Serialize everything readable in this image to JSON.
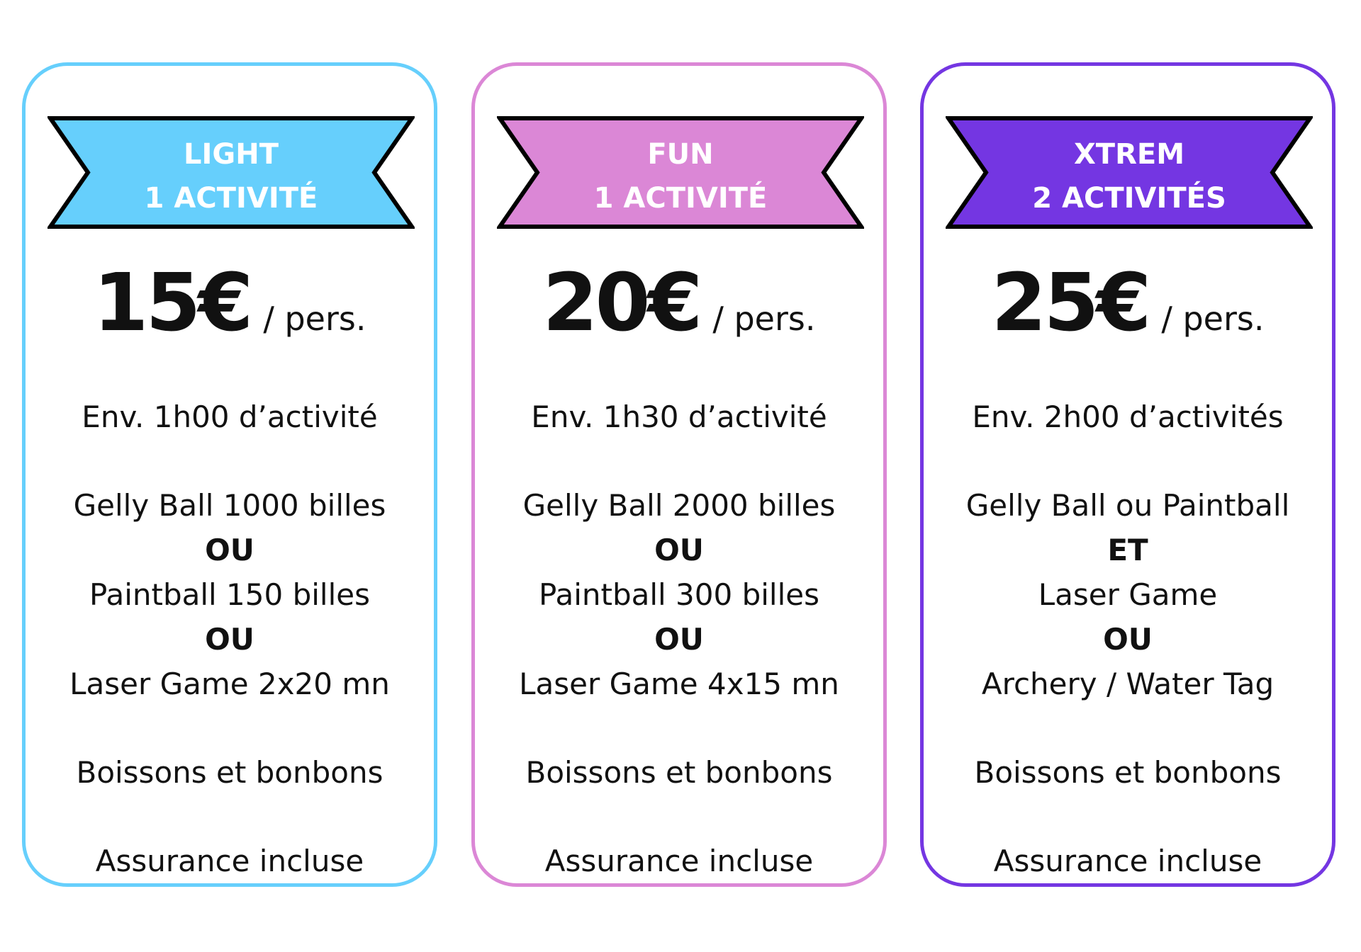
{
  "cards": [
    {
      "color": "#66CFFC",
      "title": "LIGHT",
      "subtitle": "1 ACTIVITÉ",
      "price": "15€",
      "unit": "/ pers.",
      "lines": [
        {
          "text": "Env. 1h00 d’activité",
          "bold": false
        },
        {
          "text": "Gelly Ball 1000 billes",
          "bold": false
        },
        {
          "text": "OU",
          "bold": true
        },
        {
          "text": "Paintball 150 billes",
          "bold": false
        },
        {
          "text": "OU",
          "bold": true
        },
        {
          "text": "Laser Game 2x20 mn",
          "bold": false
        },
        {
          "text": "Boissons et bonbons",
          "bold": false
        },
        {
          "text": "Assurance incluse",
          "bold": false
        }
      ]
    },
    {
      "color": "#DB87D6",
      "title": "FUN",
      "subtitle": "1 ACTIVITÉ",
      "price": "20€",
      "unit": "/ pers.",
      "lines": [
        {
          "text": "Env. 1h30 d’activité",
          "bold": false
        },
        {
          "text": "Gelly Ball 2000 billes",
          "bold": false
        },
        {
          "text": "OU",
          "bold": true
        },
        {
          "text": "Paintball 300 billes",
          "bold": false
        },
        {
          "text": "OU",
          "bold": true
        },
        {
          "text": "Laser Game 4x15 mn",
          "bold": false
        },
        {
          "text": "Boissons et bonbons",
          "bold": false
        },
        {
          "text": "Assurance incluse",
          "bold": false
        }
      ]
    },
    {
      "color": "#7436E2",
      "title": "XTREM",
      "subtitle": "2 ACTIVITÉS",
      "price": "25€",
      "unit": "/ pers.",
      "lines": [
        {
          "text": "Env. 2h00 d’activités",
          "bold": false
        },
        {
          "text": "Gelly Ball ou Paintball",
          "bold": false
        },
        {
          "text": "ET",
          "bold": true
        },
        {
          "text": "Laser Game",
          "bold": false
        },
        {
          "text": "OU",
          "bold": true
        },
        {
          "text": "Archery / Water Tag",
          "bold": false
        },
        {
          "text": "Boissons et bonbons",
          "bold": false
        },
        {
          "text": "Assurance incluse",
          "bold": false
        }
      ]
    }
  ]
}
